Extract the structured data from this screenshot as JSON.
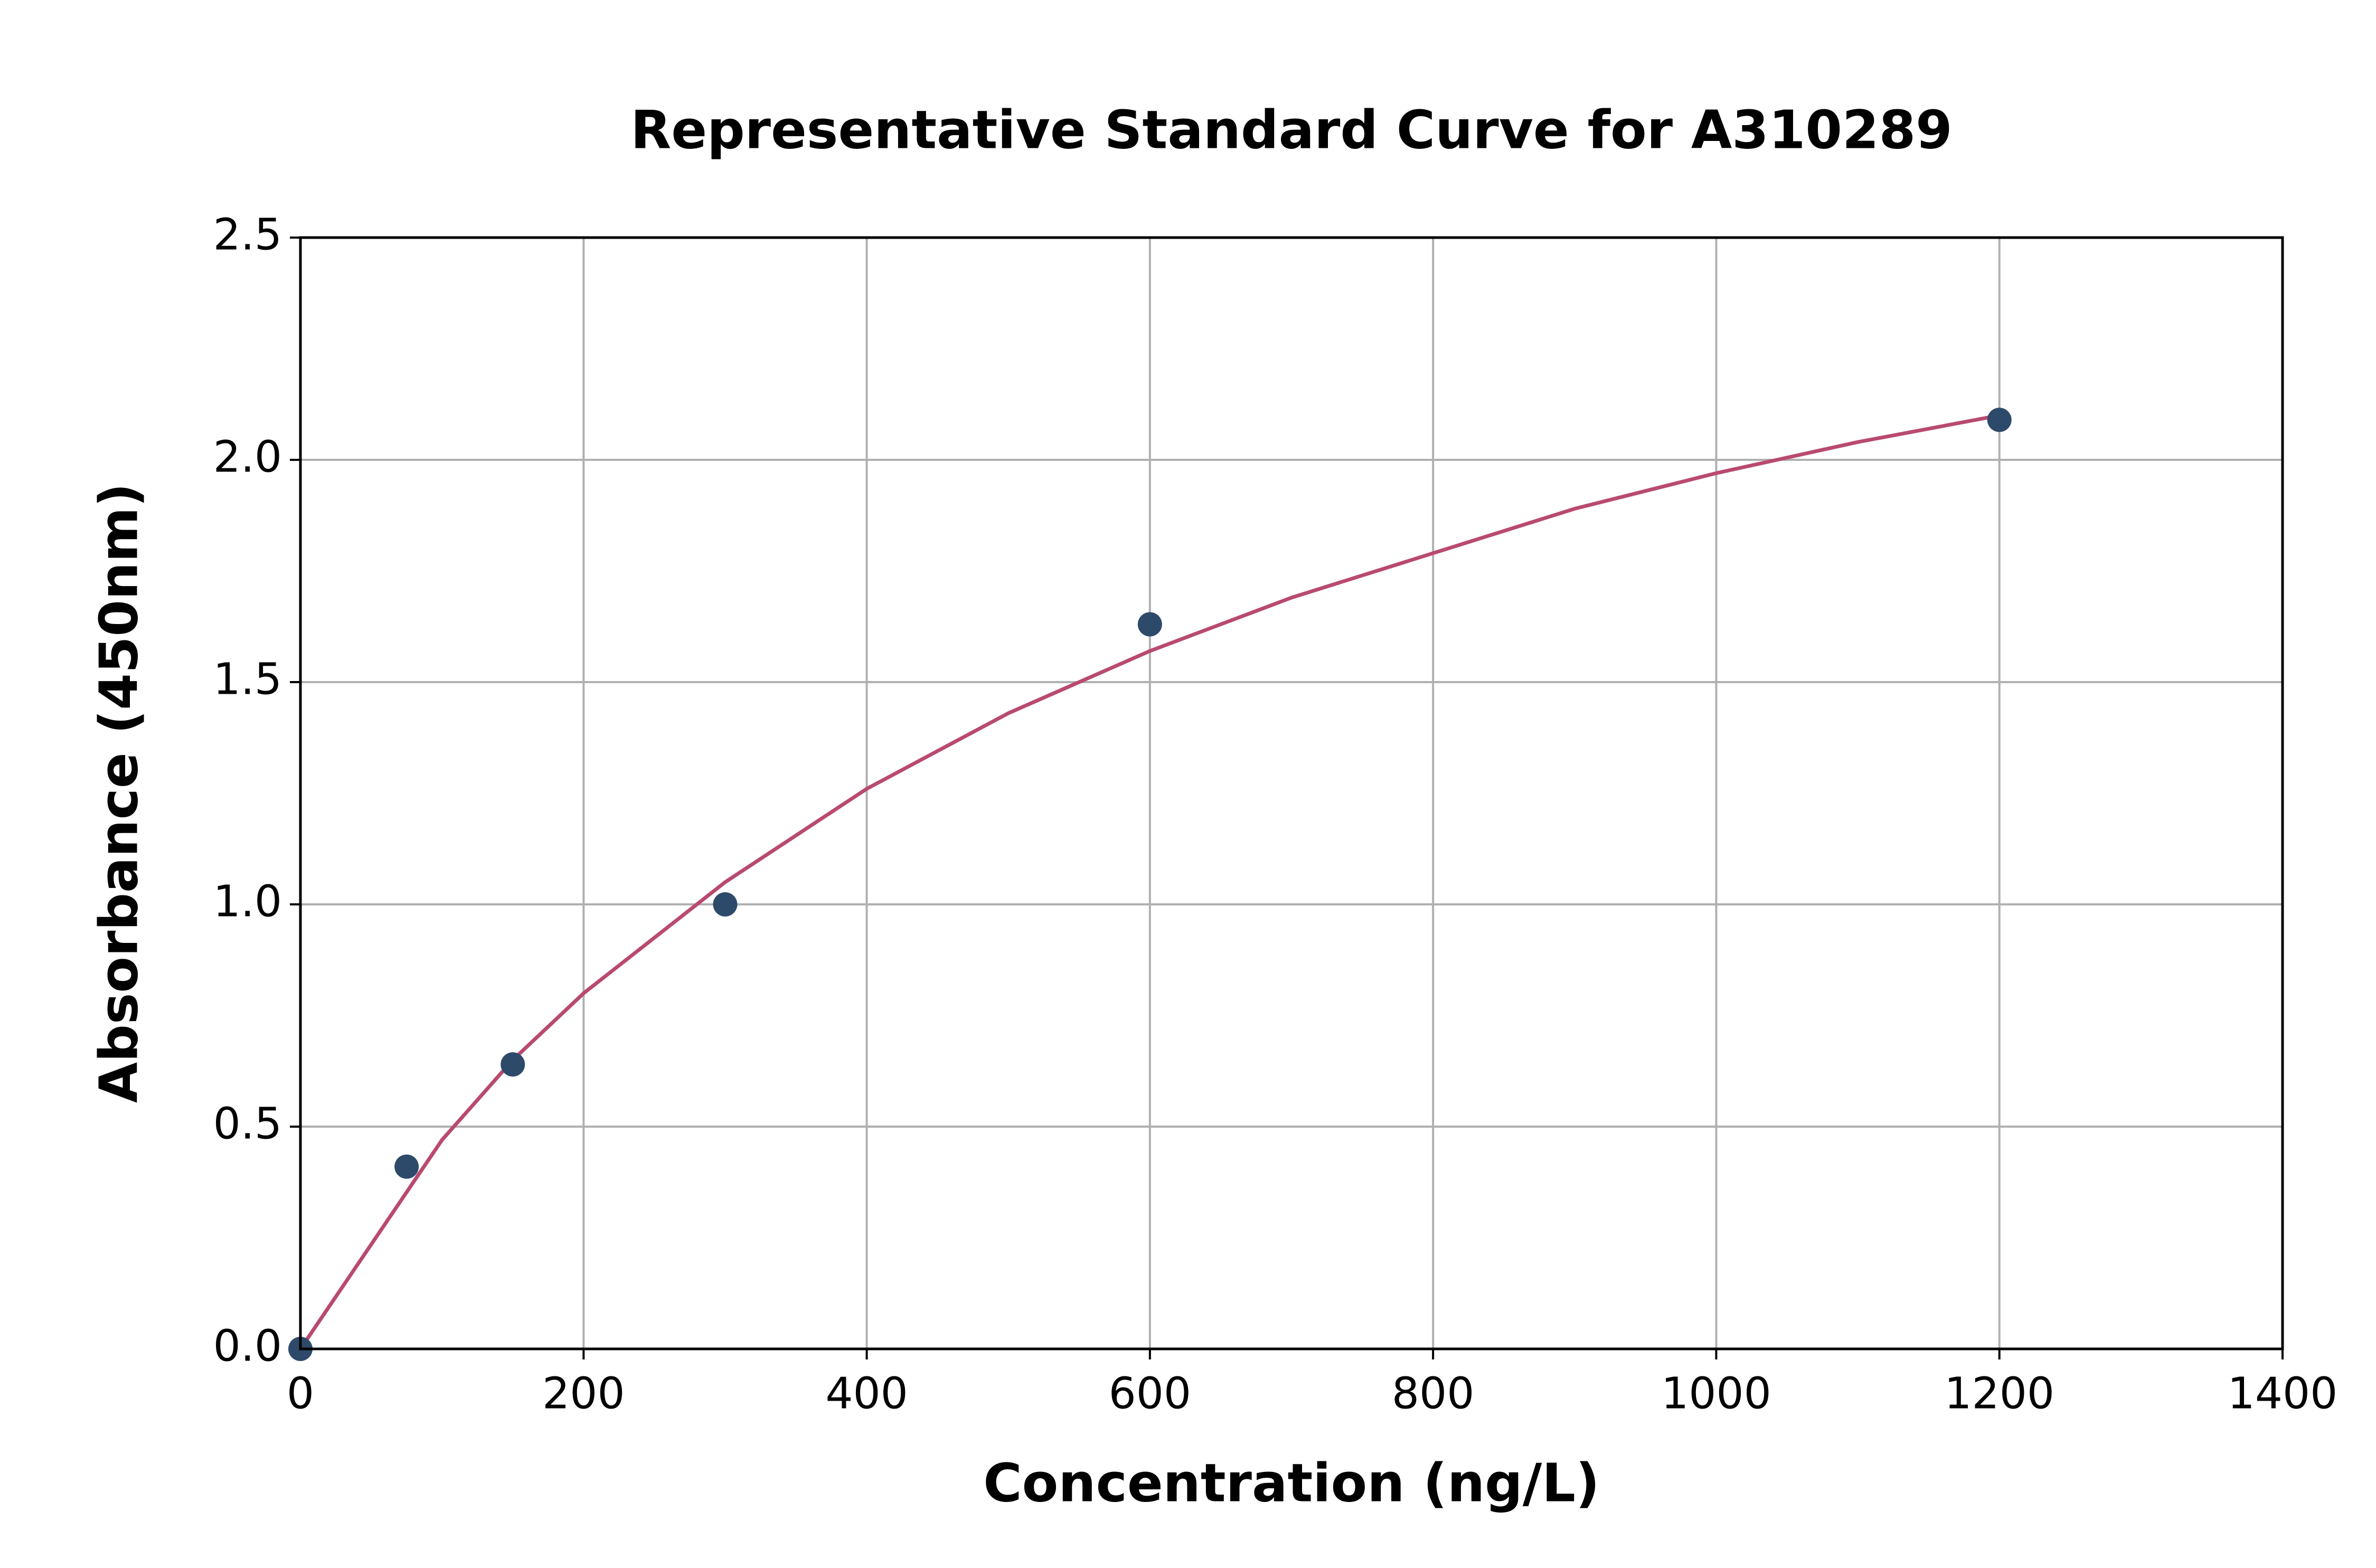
{
  "chart_data": {
    "type": "scatter",
    "title": "Representative Standard Curve for A310289",
    "xlabel": "Concentration (ng/L)",
    "ylabel": "Absorbance (450nm)",
    "xlim": [
      0,
      1400
    ],
    "ylim": [
      0,
      2.5
    ],
    "xticks": [
      0,
      200,
      400,
      600,
      800,
      1000,
      1200,
      1400
    ],
    "yticks": [
      {
        "value": 0,
        "label": "0.0"
      },
      0.5,
      {
        "value": 1,
        "label": "1.0"
      },
      1.5,
      {
        "value": 2,
        "label": "2.0"
      },
      2.5
    ],
    "grid": true,
    "points": {
      "color": "#2e4a6b",
      "x": [
        0,
        75,
        150,
        300,
        600,
        1200
      ],
      "y": [
        0,
        0.41,
        0.64,
        1.0,
        1.63,
        2.09
      ]
    },
    "curve": {
      "color": "#b94a6f",
      "x": [
        0,
        100,
        150,
        200,
        300,
        400,
        500,
        600,
        700,
        800,
        900,
        1000,
        1100,
        1200
      ],
      "y": [
        0,
        0.47,
        0.65,
        0.8,
        1.05,
        1.26,
        1.43,
        1.57,
        1.69,
        1.79,
        1.89,
        1.97,
        2.04,
        2.1
      ]
    }
  }
}
